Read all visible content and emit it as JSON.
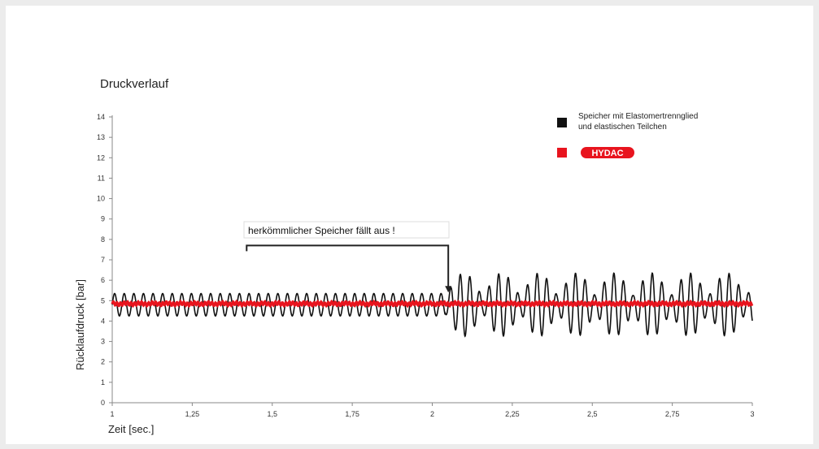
{
  "chart_data": {
    "type": "line",
    "title": "Druckverlauf",
    "xlabel": "Zeit [sec.]",
    "ylabel": "Rücklaufdruck [bar]",
    "xlim": [
      1,
      3
    ],
    "ylim": [
      0,
      14
    ],
    "x_ticks": [
      1,
      1.25,
      1.5,
      1.75,
      2,
      2.25,
      2.5,
      2.75,
      3
    ],
    "x_tick_labels": [
      "1",
      "1,25",
      "1,5",
      "1,75",
      "2",
      "2,25",
      "2,5",
      "2,75",
      "3"
    ],
    "y_ticks": [
      0,
      1,
      2,
      3,
      4,
      5,
      6,
      7,
      8,
      9,
      10,
      11,
      12,
      13,
      14
    ],
    "y_tick_labels": [
      "0",
      "1",
      "2",
      "3",
      "4",
      "5",
      "6",
      "7",
      "8",
      "9",
      "10",
      "11",
      "12",
      "13",
      "14"
    ],
    "grid": false,
    "legend_position": "top-right",
    "legend_lines": [
      "Speicher mit Elastomertrennglied",
      "und elastischen Teilchen"
    ],
    "series": [
      {
        "name": "Speicher mit Elastomertrennglied und elastischen Teilchen",
        "color": "#111111",
        "mean": 4.8,
        "oscillation_period_sec": 0.03,
        "amplitude_before_failure": 0.55,
        "failure_time": 2.04,
        "peak_amplitude_after_failure": 1.55,
        "beat_period_sec": 0.235,
        "x_range": [
          1,
          3
        ]
      },
      {
        "name": "HYDAC",
        "color": "#e8141e",
        "mean": 4.85,
        "amplitude": 0.08,
        "x_range": [
          1,
          3
        ]
      }
    ],
    "annotations": [
      {
        "text": "herkömmlicher Speicher fällt aus !",
        "arrow_from_x": 1.42,
        "arrow_to_x": 2.05,
        "arrow_level_y": 7.7,
        "arrow_tip_y": 5.4
      }
    ]
  },
  "legend": {
    "hydac_logo_text": "HYDAC",
    "hydac_color": "#e8141e",
    "black_color": "#111111"
  }
}
